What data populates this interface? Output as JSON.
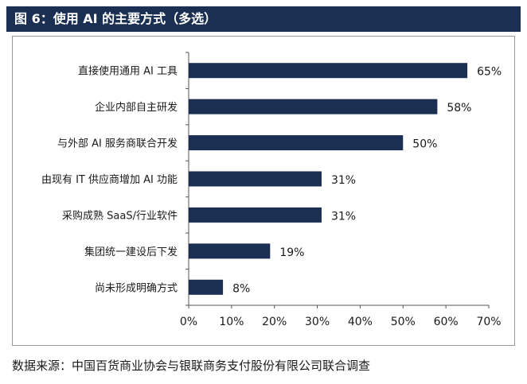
{
  "header": {
    "title": "图 6：使用 AI 的主要方式（多选）"
  },
  "source": {
    "text": "数据来源：中国百货商业协会与银联商务支付股份有限公司联合调查"
  },
  "chart_data": {
    "type": "bar",
    "orientation": "horizontal",
    "title": "",
    "xlabel": "",
    "ylabel": "",
    "categories": [
      "直接使用通用 AI 工具",
      "企业内部自主研发",
      "与外部 AI 服务商联合开发",
      "由现有 IT 供应商增加 AI 功能",
      "采购成熟 SaaS/行业软件",
      "集团统一建设后下发",
      "尚未形成明确方式"
    ],
    "values": [
      65,
      58,
      50,
      31,
      31,
      19,
      8
    ],
    "value_labels": [
      "65%",
      "58%",
      "50%",
      "31%",
      "31%",
      "19%",
      "8%"
    ],
    "xlim": [
      0,
      70
    ],
    "ticks": [
      0,
      10,
      20,
      30,
      40,
      50,
      60,
      70
    ],
    "tick_labels": [
      "0%",
      "10%",
      "20%",
      "30%",
      "40%",
      "50%",
      "60%",
      "70%"
    ],
    "grid": false,
    "bar_color": "#1b2f52"
  }
}
